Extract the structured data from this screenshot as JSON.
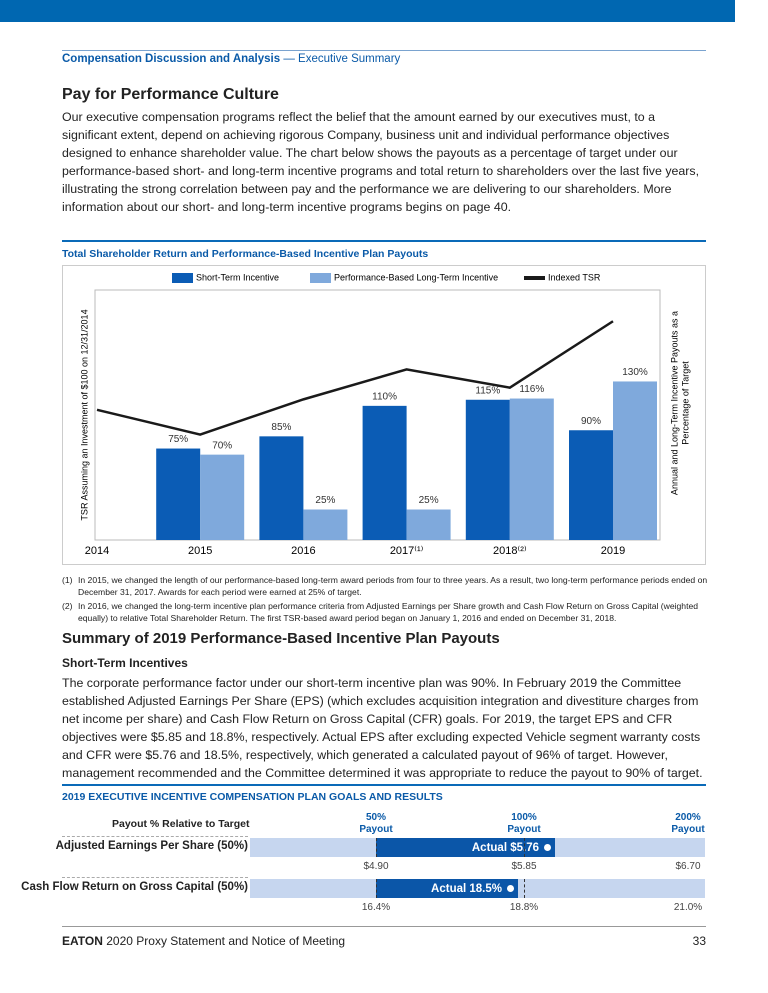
{
  "header": {
    "section": "Compensation Discussion and Analysis",
    "subsection": "— Executive Summary"
  },
  "pay": {
    "title": "Pay for Performance Culture",
    "body": "Our executive compensation programs reflect the belief that the amount earned by our executives must, to a significant extent, depend on achieving rigorous Company, business unit and individual performance objectives designed to enhance shareholder value. The chart below shows the payouts as a percentage of target under our performance-based short- and long-term incentive programs and total return to shareholders over the last five years, illustrating the strong correlation between pay and the performance we are delivering to our shareholders.  More information about our short- and long-term incentive programs begins on page 40."
  },
  "chart_data": {
    "type": "combo",
    "title": "Total Shareholder Return and Performance-Based Incentive Plan Payouts",
    "categories": [
      "2014",
      "2015",
      "2016",
      "2017⁽¹⁾",
      "2018⁽²⁾",
      "2019"
    ],
    "ylabel": "TSR Assuming an Investment of $100 on 12/31/2014",
    "y2label": [
      "Annual and Long-Term Incentive Payouts as a",
      "Percentage of Target"
    ],
    "ylim": [
      0,
      192
    ],
    "y2lim": [
      0,
      205
    ],
    "series": [
      {
        "name": "Short-Term Incentive",
        "mark": "bar",
        "axis": "y2",
        "color": "#0b5cb5",
        "values": [
          null,
          75,
          85,
          110,
          115,
          90
        ],
        "value_labels": [
          null,
          "75%",
          "85%",
          "110%",
          "115%",
          "90%"
        ]
      },
      {
        "name": "Performance-Based Long-Term Incentive",
        "mark": "bar",
        "axis": "y2",
        "color": "#7fa9dc",
        "values": [
          null,
          70,
          25,
          25,
          116,
          130
        ],
        "value_labels": [
          null,
          "70%",
          "25%",
          "25%",
          "116%",
          "130%"
        ]
      },
      {
        "name": "Indexed TSR",
        "mark": "line",
        "color": "#1a1a1a",
        "values": [
          100,
          81,
          108,
          131,
          117,
          168
        ]
      }
    ]
  },
  "footnotes": [
    {
      "marker": "(1)",
      "text": "In 2015, we changed the length of our performance-based long-term award periods from four to three years. As a result, two long-term performance periods ended on December 31, 2017.  Awards for each period were earned at 25% of target."
    },
    {
      "marker": "(2)",
      "text": "In 2016, we changed the long-term incentive plan performance criteria from Adjusted Earnings per Share growth and Cash Flow Return on Gross Capital (weighted equally) to relative Total Shareholder Return. The first TSR-based award period began on January 1, 2016 and ended on December 31, 2018."
    }
  ],
  "summary": {
    "title": "Summary of 2019 Performance-Based Incentive Plan Payouts",
    "subtitle": "Short-Term Incentives",
    "body": "The corporate performance factor under our short-term incentive plan was 90%. In February 2019 the Committee established Adjusted Earnings Per Share (EPS) (which excludes acquisition integration and divestiture charges from net income per share) and Cash Flow Return on Gross Capital (CFR) goals. For 2019, the target EPS and CFR objectives were $5.85 and 18.8%, respectively. Actual EPS after excluding expected Vehicle segment warranty costs and CFR were $5.76 and 18.5%, respectively, which generated a calculated payout of 96% of target. However, management recommended and the Committee determined it was appropriate to reduce the payout to 90% of target."
  },
  "goals": {
    "title": "2019 EXECUTIVE INCENTIVE COMPENSATION PLAN GOALS AND RESULTS",
    "header": "Payout % Relative to Target",
    "columns": [
      {
        "pct": "50%",
        "label": "Payout"
      },
      {
        "pct": "100%",
        "label": "Payout"
      },
      {
        "pct": "200%",
        "label": "Payout"
      }
    ],
    "rows": [
      {
        "label": "Adjusted Earnings Per Share (50%)",
        "actual": "Actual $5.76",
        "ticks": [
          "$4.90",
          "$5.85",
          "$6.70"
        ]
      },
      {
        "label": "Cash Flow Return on Gross Capital (50%)",
        "actual": "Actual 18.5%",
        "ticks": [
          "16.4%",
          "18.8%",
          "21.0%"
        ]
      }
    ]
  },
  "footer": {
    "brand": "EATON",
    "text": "2020 Proxy Statement and Notice of Meeting",
    "page": "33"
  }
}
